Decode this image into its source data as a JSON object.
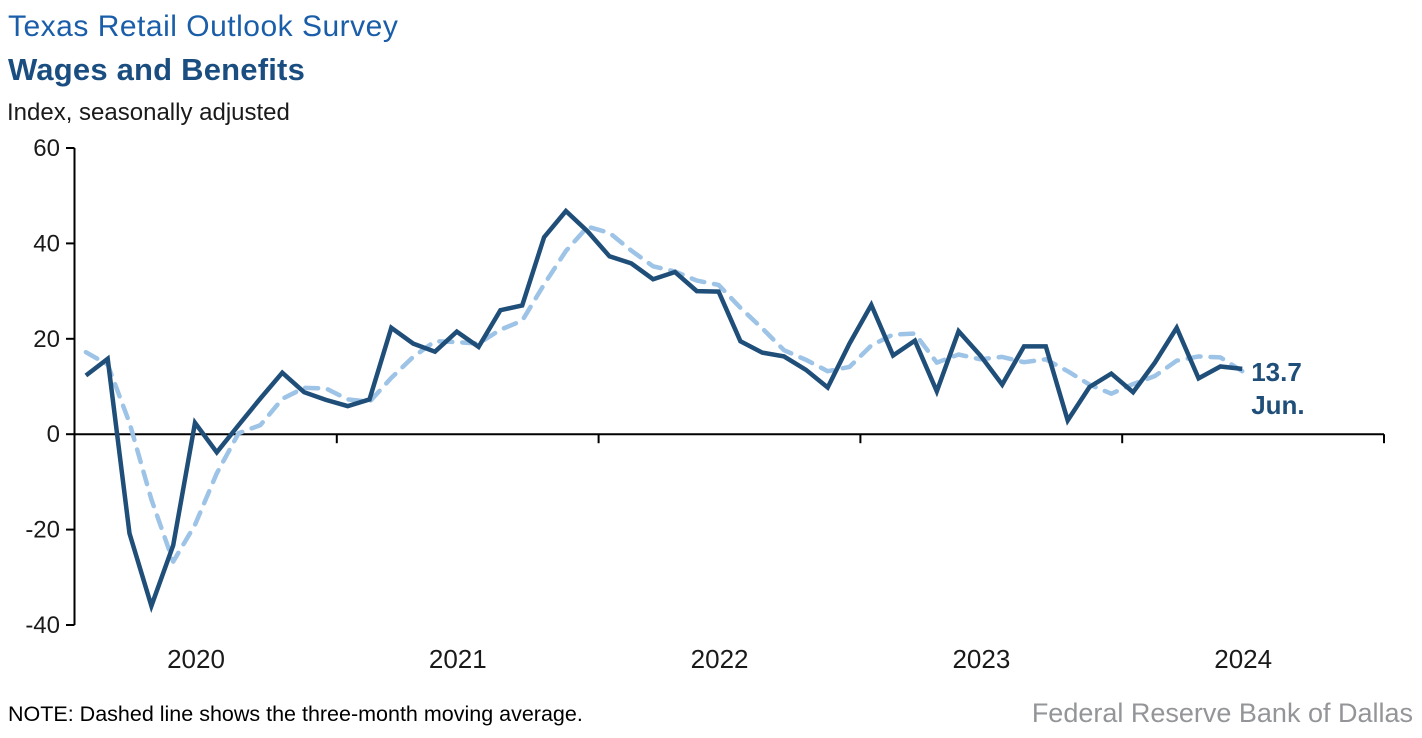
{
  "header": {
    "title_line1": "Texas Retail Outlook Survey",
    "title_line2": "Wages and Benefits",
    "subtitle": "Index, seasonally adjusted"
  },
  "chart_data": {
    "type": "line",
    "title": "Texas Retail Outlook Survey — Wages and Benefits",
    "ylabel": "Index, seasonally adjusted",
    "ylim": [
      -40,
      60
    ],
    "y_ticks": [
      60,
      40,
      20,
      0,
      -20,
      -40
    ],
    "x_year_labels": [
      "2020",
      "2021",
      "2022",
      "2023",
      "2024"
    ],
    "grid": false,
    "legend_position": "none",
    "months": [
      "2020-01",
      "2020-02",
      "2020-03",
      "2020-04",
      "2020-05",
      "2020-06",
      "2020-07",
      "2020-08",
      "2020-09",
      "2020-10",
      "2020-11",
      "2020-12",
      "2021-01",
      "2021-02",
      "2021-03",
      "2021-04",
      "2021-05",
      "2021-06",
      "2021-07",
      "2021-08",
      "2021-09",
      "2021-10",
      "2021-11",
      "2021-12",
      "2022-01",
      "2022-02",
      "2022-03",
      "2022-04",
      "2022-05",
      "2022-06",
      "2022-07",
      "2022-08",
      "2022-09",
      "2022-10",
      "2022-11",
      "2022-12",
      "2023-01",
      "2023-02",
      "2023-03",
      "2023-04",
      "2023-05",
      "2023-06",
      "2023-07",
      "2023-08",
      "2023-09",
      "2023-10",
      "2023-11",
      "2023-12",
      "2024-01",
      "2024-02",
      "2024-03",
      "2024-04",
      "2024-05",
      "2024-06"
    ],
    "series": [
      {
        "name": "Wages and benefits index",
        "style": "solid",
        "color": "#1F4E79",
        "values": [
          12.3,
          15.8,
          -20.8,
          -36.0,
          -23.3,
          2.4,
          -3.8,
          1.9,
          7.5,
          12.9,
          8.8,
          7.2,
          5.9,
          7.3,
          22.3,
          19.0,
          17.3,
          21.5,
          18.3,
          26.0,
          27.0,
          41.3,
          46.8,
          42.5,
          37.3,
          35.8,
          32.5,
          34.0,
          30.0,
          29.9,
          19.5,
          17.1,
          16.3,
          13.5,
          9.8,
          19.0,
          27.1,
          16.5,
          19.6,
          9.0,
          21.6,
          16.5,
          10.4,
          18.4,
          18.4,
          2.9,
          9.9,
          12.7,
          8.8,
          15.0,
          22.3,
          11.7,
          14.2,
          13.7
        ]
      },
      {
        "name": "Three-month moving average",
        "style": "dashed",
        "color": "#9DC3E6",
        "values": [
          17.2,
          14.6,
          2.4,
          -13.7,
          -26.7,
          -19.0,
          -8.2,
          0.2,
          1.9,
          7.4,
          9.7,
          9.6,
          7.3,
          6.8,
          11.8,
          16.2,
          19.5,
          19.3,
          19.0,
          21.9,
          23.8,
          31.4,
          38.4,
          43.5,
          42.2,
          38.5,
          35.2,
          34.1,
          32.2,
          31.3,
          26.5,
          22.2,
          17.6,
          15.6,
          13.2,
          14.1,
          18.6,
          20.9,
          21.1,
          15.0,
          16.7,
          15.7,
          16.2,
          15.1,
          15.7,
          13.2,
          10.4,
          8.5,
          10.5,
          12.2,
          15.4,
          16.3,
          16.1,
          13.2
        ]
      }
    ],
    "annotation": {
      "value": "13.7",
      "label": "Jun."
    }
  },
  "footer": {
    "note": "NOTE: Dashed line shows the three-month moving average.",
    "source": "Federal Reserve Bank of Dallas"
  },
  "colors": {
    "title_line1": "#1a5da8",
    "title_line2": "#1b4e80",
    "solid_line": "#1F4E79",
    "dashed_line": "#9DC3E6",
    "axis": "#000000",
    "source_text": "#939598"
  }
}
